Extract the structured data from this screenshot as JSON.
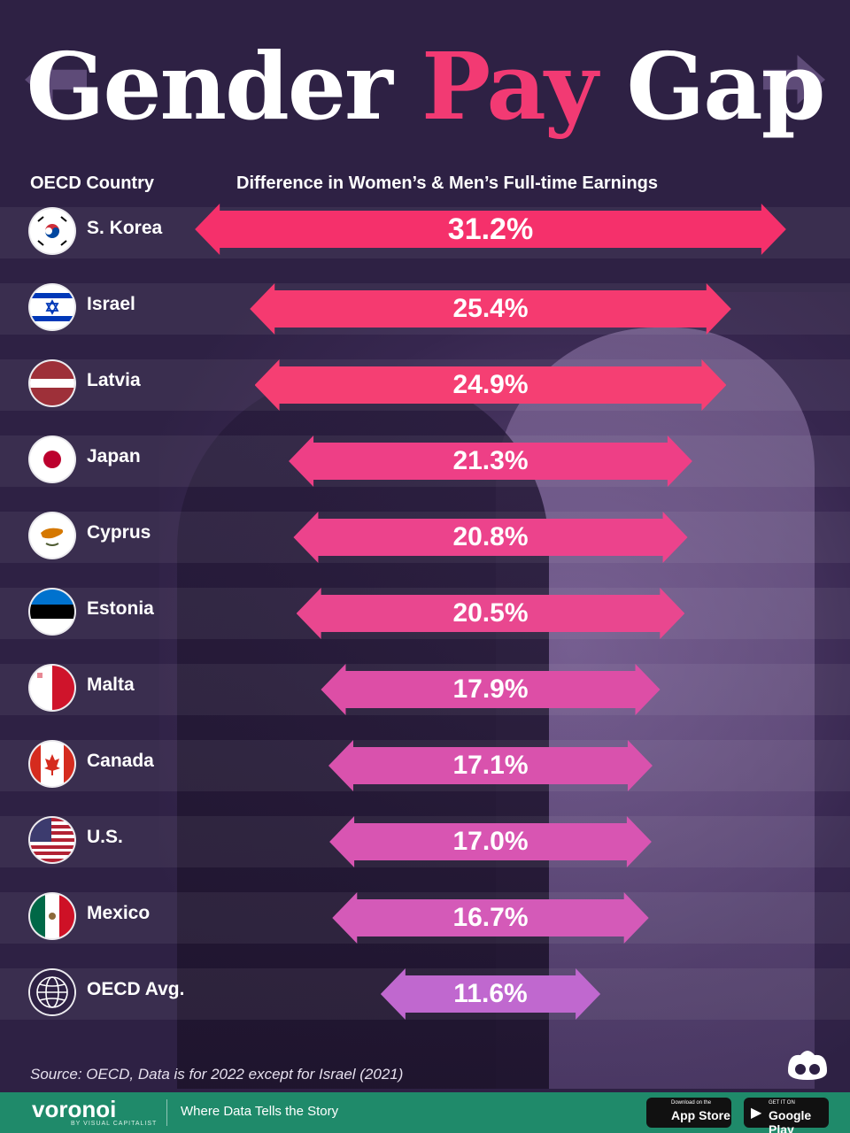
{
  "title": {
    "part1": "Gender ",
    "part2": "Pay",
    "part3": " Gap"
  },
  "headers": {
    "country": "OECD Country",
    "difference": "Difference in Women’s & Men’s Full-time Earnings"
  },
  "chart_data": {
    "type": "bar",
    "categories": [
      "S. Korea",
      "Israel",
      "Latvia",
      "Japan",
      "Cyprus",
      "Estonia",
      "Malta",
      "Canada",
      "U.S.",
      "Mexico",
      "OECD Avg."
    ],
    "values": [
      31.2,
      25.4,
      24.9,
      21.3,
      20.8,
      20.5,
      17.9,
      17.1,
      17.0,
      16.7,
      11.6
    ],
    "labels": [
      "31.2%",
      "25.4%",
      "24.9%",
      "21.3%",
      "20.8%",
      "20.5%",
      "17.9%",
      "17.1%",
      "17.0%",
      "16.7%",
      "11.6%"
    ],
    "title": "Gender Pay Gap",
    "xlabel": "Difference in Women’s & Men’s Full-time Earnings",
    "ylabel": "OECD Country",
    "colors": [
      "#f5306b",
      "#f53a70",
      "#f53f73",
      "#ee3f86",
      "#ec438c",
      "#e9478f",
      "#dd4ea6",
      "#d952ad",
      "#d855b2",
      "#d45ab8",
      "#c068cf"
    ]
  },
  "flags": [
    "kr-flag-icon",
    "il-flag-icon",
    "lv-flag-icon",
    "jp-flag-icon",
    "cy-flag-icon",
    "ee-flag-icon",
    "mt-flag-icon",
    "ca-flag-icon",
    "us-flag-icon",
    "mx-flag-icon",
    "globe-icon"
  ],
  "source": "Source: OECD, Data is for 2022 except for Israel (2021)",
  "footer": {
    "brand": "voronoi",
    "brand_sub": "BY VISUAL CAPITALIST",
    "tagline": "Where Data Tells the Story",
    "apple_small": "Download on the",
    "apple_big": "App Store",
    "google_small": "GET IT ON",
    "google_big": "Google Play"
  }
}
